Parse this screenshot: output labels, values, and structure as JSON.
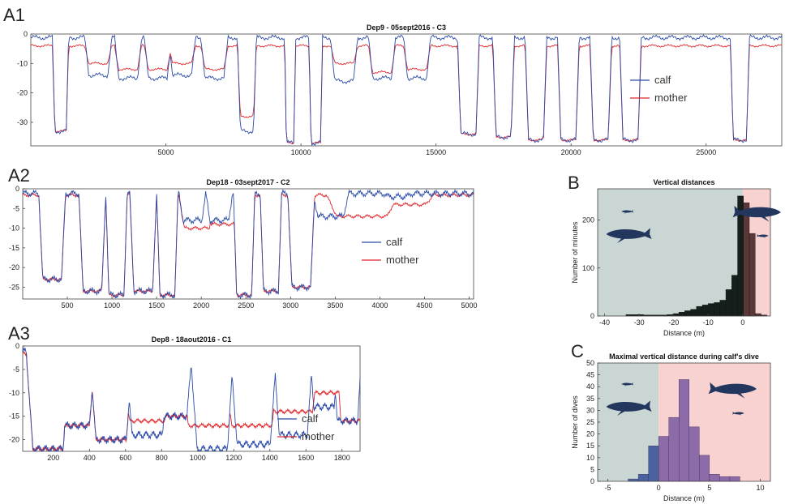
{
  "colors": {
    "calf": "#2b4ba8",
    "mother": "#e0262a",
    "calf_zone": "#c9d6d4",
    "mother_zone": "#f8d2d0",
    "hist_dark": "#151f1c",
    "hist_purple": "#8d6aa8",
    "hist_blue": "#4a62a0",
    "whale": "#23375e"
  },
  "panels": [
    {
      "letter": "A1",
      "title": "Dep9 - 05sept2016 - C3",
      "legend": [
        "calf",
        "mother"
      ]
    },
    {
      "letter": "A2",
      "title": "Dep18 - 03sept2017 - C2",
      "legend": [
        "calf",
        "mother"
      ]
    },
    {
      "letter": "A3",
      "title": "Dep8 - 18aout2016 - C1",
      "legend": [
        "calf",
        "mother"
      ]
    },
    {
      "letter": "B",
      "title": "Vertical distances"
    },
    {
      "letter": "C",
      "title": "Maximal vertical distance during calf's dive"
    }
  ],
  "chart_data": [
    {
      "type": "line",
      "id": "A1",
      "title": "Dep9 - 05sept2016 - C3",
      "xlabel": "",
      "ylabel": "",
      "xlim": [
        0,
        27800
      ],
      "ylim": [
        -38,
        0
      ],
      "xticks": [
        5000,
        10000,
        15000,
        20000,
        25000
      ],
      "yticks": [
        0,
        -10,
        -20,
        -30
      ],
      "series": [
        {
          "name": "calf",
          "dives": [
            [
              1100,
              300,
              -33
            ],
            [
              2500,
              500,
              -14
            ],
            [
              3600,
              500,
              -15
            ],
            [
              4700,
              500,
              -15
            ],
            [
              5600,
              500,
              -14
            ],
            [
              6800,
              500,
              -15
            ],
            [
              8000,
              350,
              -33
            ],
            [
              9600,
              200,
              -37
            ],
            [
              10550,
              250,
              -37
            ],
            [
              11600,
              500,
              -16
            ],
            [
              13000,
              500,
              -15
            ],
            [
              14300,
              500,
              -15
            ],
            [
              16200,
              400,
              -34
            ],
            [
              17500,
              400,
              -35
            ],
            [
              18700,
              400,
              -36
            ],
            [
              19900,
              400,
              -36
            ],
            [
              21100,
              400,
              -36
            ],
            [
              22200,
              400,
              -36
            ],
            [
              26250,
              350,
              -36
            ]
          ]
        },
        {
          "name": "mother",
          "dives": [
            [
              1100,
              300,
              -33
            ],
            [
              2500,
              500,
              -10
            ],
            [
              3600,
              500,
              -12
            ],
            [
              4700,
              500,
              -12
            ],
            [
              5600,
              500,
              -10
            ],
            [
              6800,
              500,
              -12
            ],
            [
              8000,
              350,
              -28
            ],
            [
              9600,
              200,
              -37
            ],
            [
              10550,
              250,
              -37
            ],
            [
              11600,
              500,
              -10
            ],
            [
              13000,
              500,
              -13
            ],
            [
              14300,
              500,
              -12
            ],
            [
              16200,
              400,
              -34
            ],
            [
              17500,
              400,
              -35
            ],
            [
              18700,
              400,
              -36
            ],
            [
              19900,
              400,
              -36
            ],
            [
              21100,
              400,
              -36
            ],
            [
              22200,
              400,
              -36
            ],
            [
              26250,
              350,
              -36
            ]
          ]
        }
      ]
    },
    {
      "type": "line",
      "id": "A2",
      "title": "Dep18 - 03sept2017 - C2",
      "xlabel": "",
      "ylabel": "",
      "xlim": [
        0,
        5050
      ],
      "ylim": [
        -28,
        0
      ],
      "xticks": [
        500,
        1000,
        1500,
        2000,
        2500,
        3000,
        3500,
        4000,
        4500,
        5000
      ],
      "yticks": [
        0,
        -5,
        -10,
        -15,
        -20,
        -25
      ],
      "series": [
        {
          "name": "calf",
          "dives": [
            [
              330,
              150,
              -23
            ],
            [
              780,
              150,
              -26
            ],
            [
              1050,
              120,
              -27
            ],
            [
              1350,
              150,
              -26
            ],
            [
              1620,
              120,
              -27
            ],
            [
              1900,
              150,
              -8
            ],
            [
              2200,
              150,
              -8
            ],
            [
              2480,
              120,
              -27
            ],
            [
              2780,
              120,
              -26
            ],
            [
              3120,
              150,
              -25
            ],
            [
              3450,
              200,
              -7
            ],
            [
              4200,
              150,
              -2
            ]
          ]
        },
        {
          "name": "mother",
          "dives": [
            [
              330,
              150,
              -23
            ],
            [
              780,
              150,
              -26
            ],
            [
              1050,
              120,
              -27
            ],
            [
              1350,
              150,
              -26
            ],
            [
              1620,
              120,
              -27
            ],
            [
              1950,
              200,
              -10
            ],
            [
              2250,
              200,
              -9
            ],
            [
              2480,
              120,
              -27
            ],
            [
              2780,
              120,
              -26
            ],
            [
              3120,
              150,
              -25
            ],
            [
              3800,
              400,
              -7
            ],
            [
              4300,
              300,
              -4
            ]
          ]
        }
      ]
    },
    {
      "type": "line",
      "id": "A3",
      "title": "Dep8 - 18aout2016 - C1",
      "xlabel": "",
      "ylabel": "",
      "xlim": [
        30,
        1900
      ],
      "ylim": [
        -22.5,
        0
      ],
      "xticks": [
        200,
        400,
        600,
        800,
        1000,
        1200,
        1400,
        1600,
        1800
      ],
      "yticks": [
        0,
        -5,
        -10,
        -15,
        -20
      ],
      "series": [
        {
          "name": "calf",
          "dives": [
            [
              170,
              120,
              -22
            ],
            [
              330,
              100,
              -17
            ],
            [
              520,
              120,
              -20
            ],
            [
              720,
              120,
              -19
            ],
            [
              870,
              100,
              -15
            ],
            [
              1080,
              120,
              -22
            ],
            [
              1310,
              130,
              -21
            ],
            [
              1530,
              110,
              -19
            ],
            [
              1700,
              80,
              -13
            ],
            [
              1830,
              80,
              -16
            ]
          ]
        },
        {
          "name": "mother",
          "dives": [
            [
              170,
              120,
              -22
            ],
            [
              330,
              100,
              -17
            ],
            [
              520,
              120,
              -20
            ],
            [
              720,
              140,
              -16
            ],
            [
              900,
              150,
              -15
            ],
            [
              1060,
              160,
              -17
            ],
            [
              1300,
              160,
              -17
            ],
            [
              1530,
              150,
              -14
            ],
            [
              1720,
              100,
              -10
            ],
            [
              1850,
              80,
              -16
            ]
          ]
        }
      ]
    },
    {
      "type": "bar",
      "id": "B",
      "title": "Vertical distances",
      "xlabel": "Distance (m)",
      "ylabel": "Number of minutes",
      "xlim": [
        -42,
        8
      ],
      "ylim": [
        0,
        265
      ],
      "xticks": [
        -40,
        -30,
        -20,
        -10,
        0
      ],
      "yticks": [
        0,
        100,
        200
      ],
      "bin_width": 1.7,
      "bin_starts": [
        -33.8,
        -32.1,
        -30.4,
        -28.7,
        -27,
        -25.3,
        -23.6,
        -21.9,
        -20.2,
        -18.5,
        -16.8,
        -15.1,
        -13.4,
        -11.7,
        -10,
        -8.3,
        -6.6,
        -4.9,
        -3.2,
        -1.5,
        0.2,
        1.9,
        3.6,
        5.3
      ],
      "values": [
        3,
        3,
        3,
        2,
        2,
        2,
        2,
        3,
        5,
        8,
        11,
        14,
        20,
        23,
        26,
        28,
        33,
        55,
        85,
        250,
        236,
        172,
        5,
        2
      ]
    },
    {
      "type": "bar",
      "id": "C",
      "title": "Maximal vertical distance during calf's dive",
      "xlabel": "Distance (m)",
      "ylabel": "Number of dives",
      "xlim": [
        -6,
        11
      ],
      "ylim": [
        0,
        50
      ],
      "xticks": [
        -5,
        0,
        5,
        10
      ],
      "yticks": [
        0,
        5,
        10,
        15,
        20,
        25,
        30,
        35,
        40,
        45,
        50
      ],
      "bin_width": 1,
      "bin_starts": [
        -3,
        -2,
        -1,
        0,
        1,
        2,
        3,
        4,
        5,
        6,
        7
      ],
      "values": [
        1,
        3,
        15,
        19,
        27,
        43,
        23,
        11,
        3,
        2,
        2
      ]
    }
  ]
}
